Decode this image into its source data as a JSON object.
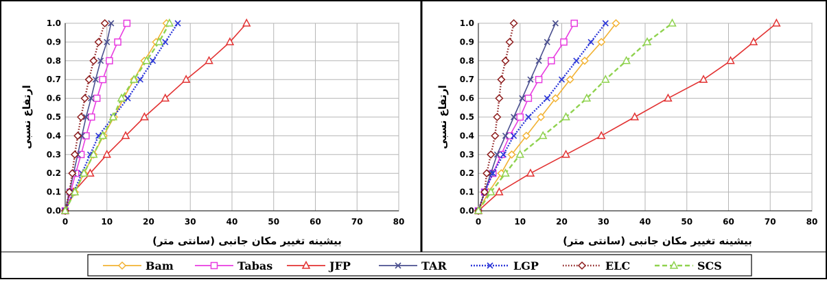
{
  "chart_data": [
    {
      "type": "line",
      "xlabel": "بیشینه تغییر مکان جانبی (سانتی متر)",
      "ylabel": "ارتفاع نسبی",
      "xlim": [
        0,
        80
      ],
      "ylim": [
        0,
        1
      ],
      "xticks": [
        "0",
        "10",
        "20",
        "30",
        "40",
        "50",
        "60",
        "70",
        "80"
      ],
      "yticks": [
        "0.0",
        "0.1",
        "0.2",
        "0.3",
        "0.4",
        "0.5",
        "0.6",
        "0.7",
        "0.8",
        "0.9",
        "1.0"
      ],
      "grid": true,
      "y": [
        0,
        0.1,
        0.2,
        0.3,
        0.4,
        0.5,
        0.6,
        0.7,
        0.8,
        0.9,
        1.0
      ],
      "series": [
        {
          "name": "Bam",
          "x": [
            0,
            2.3,
            4.5,
            6.8,
            9.2,
            11.7,
            14.0,
            16.5,
            19.0,
            21.8,
            24.3
          ]
        },
        {
          "name": "Tabas",
          "x": [
            0,
            1.3,
            2.5,
            3.8,
            5.0,
            6.3,
            7.6,
            9.0,
            10.6,
            12.6,
            14.8
          ]
        },
        {
          "name": "JFP",
          "x": [
            0,
            2.0,
            6.0,
            10.0,
            14.5,
            19.0,
            24.0,
            29.0,
            34.5,
            39.5,
            43.5
          ]
        },
        {
          "name": "TAR",
          "x": [
            0,
            1.0,
            2.0,
            3.0,
            4.0,
            5.0,
            6.2,
            7.3,
            8.5,
            10.0,
            11.0
          ]
        },
        {
          "name": "LGP",
          "x": [
            0,
            2.0,
            4.0,
            6.0,
            8.0,
            11.5,
            15.0,
            18.0,
            21.0,
            24.0,
            27.0
          ]
        },
        {
          "name": "ELC",
          "x": [
            0,
            1.0,
            1.7,
            2.3,
            3.0,
            3.8,
            4.7,
            5.7,
            6.8,
            8.0,
            9.5
          ]
        },
        {
          "name": "SCS",
          "x": [
            0,
            2.3,
            4.5,
            6.8,
            9.0,
            11.5,
            13.5,
            16.5,
            19.5,
            22.5,
            25.0
          ]
        }
      ]
    },
    {
      "type": "line",
      "xlabel": "بیشینه تغییر مکان جانبی (سانتی متر)",
      "ylabel": "ارتفاع نسبی",
      "xlim": [
        0,
        80
      ],
      "ylim": [
        0,
        1
      ],
      "xticks": [
        "0",
        "10",
        "20",
        "30",
        "40",
        "50",
        "60",
        "70",
        "80"
      ],
      "yticks": [
        "0.0",
        "0.1",
        "0.2",
        "0.3",
        "0.4",
        "0.5",
        "0.6",
        "0.7",
        "0.8",
        "0.9",
        "1.0"
      ],
      "grid": true,
      "y": [
        0,
        0.1,
        0.2,
        0.3,
        0.4,
        0.5,
        0.6,
        0.7,
        0.8,
        0.9,
        1.0
      ],
      "series": [
        {
          "name": "Bam",
          "x": [
            0,
            2.5,
            5.5,
            8.0,
            11.5,
            15.0,
            18.5,
            22.0,
            25.5,
            29.5,
            33.0
          ]
        },
        {
          "name": "Tabas",
          "x": [
            0,
            1.5,
            3.5,
            5.5,
            7.5,
            10.0,
            12.0,
            14.5,
            17.5,
            20.5,
            23.0
          ]
        },
        {
          "name": "JFP",
          "x": [
            0,
            5.0,
            12.5,
            21.0,
            29.5,
            37.5,
            45.5,
            54.0,
            60.5,
            66.0,
            71.5
          ]
        },
        {
          "name": "TAR",
          "x": [
            0,
            1.5,
            3.0,
            4.5,
            6.5,
            8.5,
            10.5,
            12.5,
            14.5,
            16.5,
            18.5
          ]
        },
        {
          "name": "LGP",
          "x": [
            0,
            1.5,
            3.5,
            6.0,
            8.5,
            12.0,
            16.5,
            20.0,
            23.5,
            27.0,
            30.5
          ]
        },
        {
          "name": "ELC",
          "x": [
            0,
            1.5,
            2.0,
            3.0,
            4.0,
            4.5,
            5.0,
            5.5,
            6.5,
            7.5,
            8.5
          ]
        },
        {
          "name": "SCS",
          "x": [
            0,
            3.0,
            6.5,
            10.0,
            15.5,
            21.0,
            26.0,
            30.5,
            35.5,
            40.5,
            46.5
          ]
        }
      ]
    }
  ],
  "legend": {
    "placement": "bottom",
    "entries": [
      "Bam",
      "Tabas",
      "JFP",
      "TAR",
      "LGP",
      "ELC",
      "SCS"
    ]
  },
  "styles": {
    "Bam": {
      "color": "#f2b233",
      "marker": "diamond",
      "dash": "solid",
      "icon": "diamond-marker-icon"
    },
    "Tabas": {
      "color": "#e83ce0",
      "marker": "square",
      "dash": "solid",
      "icon": "square-marker-icon"
    },
    "JFP": {
      "color": "#e23232",
      "marker": "triangle",
      "dash": "solid",
      "icon": "triangle-marker-icon"
    },
    "TAR": {
      "color": "#4a4f8f",
      "marker": "x",
      "dash": "solid",
      "icon": "x-marker-icon"
    },
    "LGP": {
      "color": "#2a35d8",
      "marker": "x",
      "dash": "dot",
      "icon": "x-marker-icon"
    },
    "ELC": {
      "color": "#8b1a1a",
      "marker": "diamond",
      "dash": "densedot",
      "icon": "diamond-marker-icon"
    },
    "SCS": {
      "color": "#8fd24e",
      "marker": "triangle",
      "dash": "dash",
      "icon": "triangle-marker-icon"
    }
  }
}
